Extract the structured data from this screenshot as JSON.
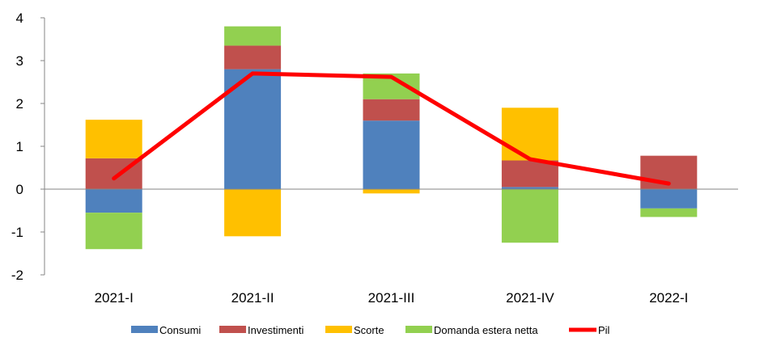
{
  "chart_data": {
    "type": "bar",
    "stacked": true,
    "categories": [
      "2021-I",
      "2021-II",
      "2021-III",
      "2021-IV",
      "2022-I"
    ],
    "ylim": [
      -2,
      4
    ],
    "yticks": [
      -2,
      -1,
      0,
      1,
      2,
      3,
      4
    ],
    "title": "",
    "xlabel": "",
    "ylabel": "",
    "legend_position": "bottom",
    "series": [
      {
        "name": "Consumi",
        "color": "#4f81bd",
        "values": [
          -0.55,
          2.8,
          1.6,
          0.05,
          -0.45
        ]
      },
      {
        "name": "Investimenti",
        "color": "#c0504d",
        "values": [
          0.72,
          0.55,
          0.5,
          0.62,
          0.78
        ]
      },
      {
        "name": "Scorte",
        "color": "#ffc000",
        "values": [
          0.9,
          -1.1,
          -0.1,
          1.23,
          0.0
        ]
      },
      {
        "name": "Domanda estera netta",
        "color": "#92d050",
        "values": [
          -0.85,
          0.45,
          0.6,
          -1.25,
          -0.2
        ]
      }
    ],
    "line_series": {
      "name": "Pil",
      "color": "#ff0000",
      "values": [
        0.25,
        2.7,
        2.62,
        0.7,
        0.13
      ]
    }
  }
}
